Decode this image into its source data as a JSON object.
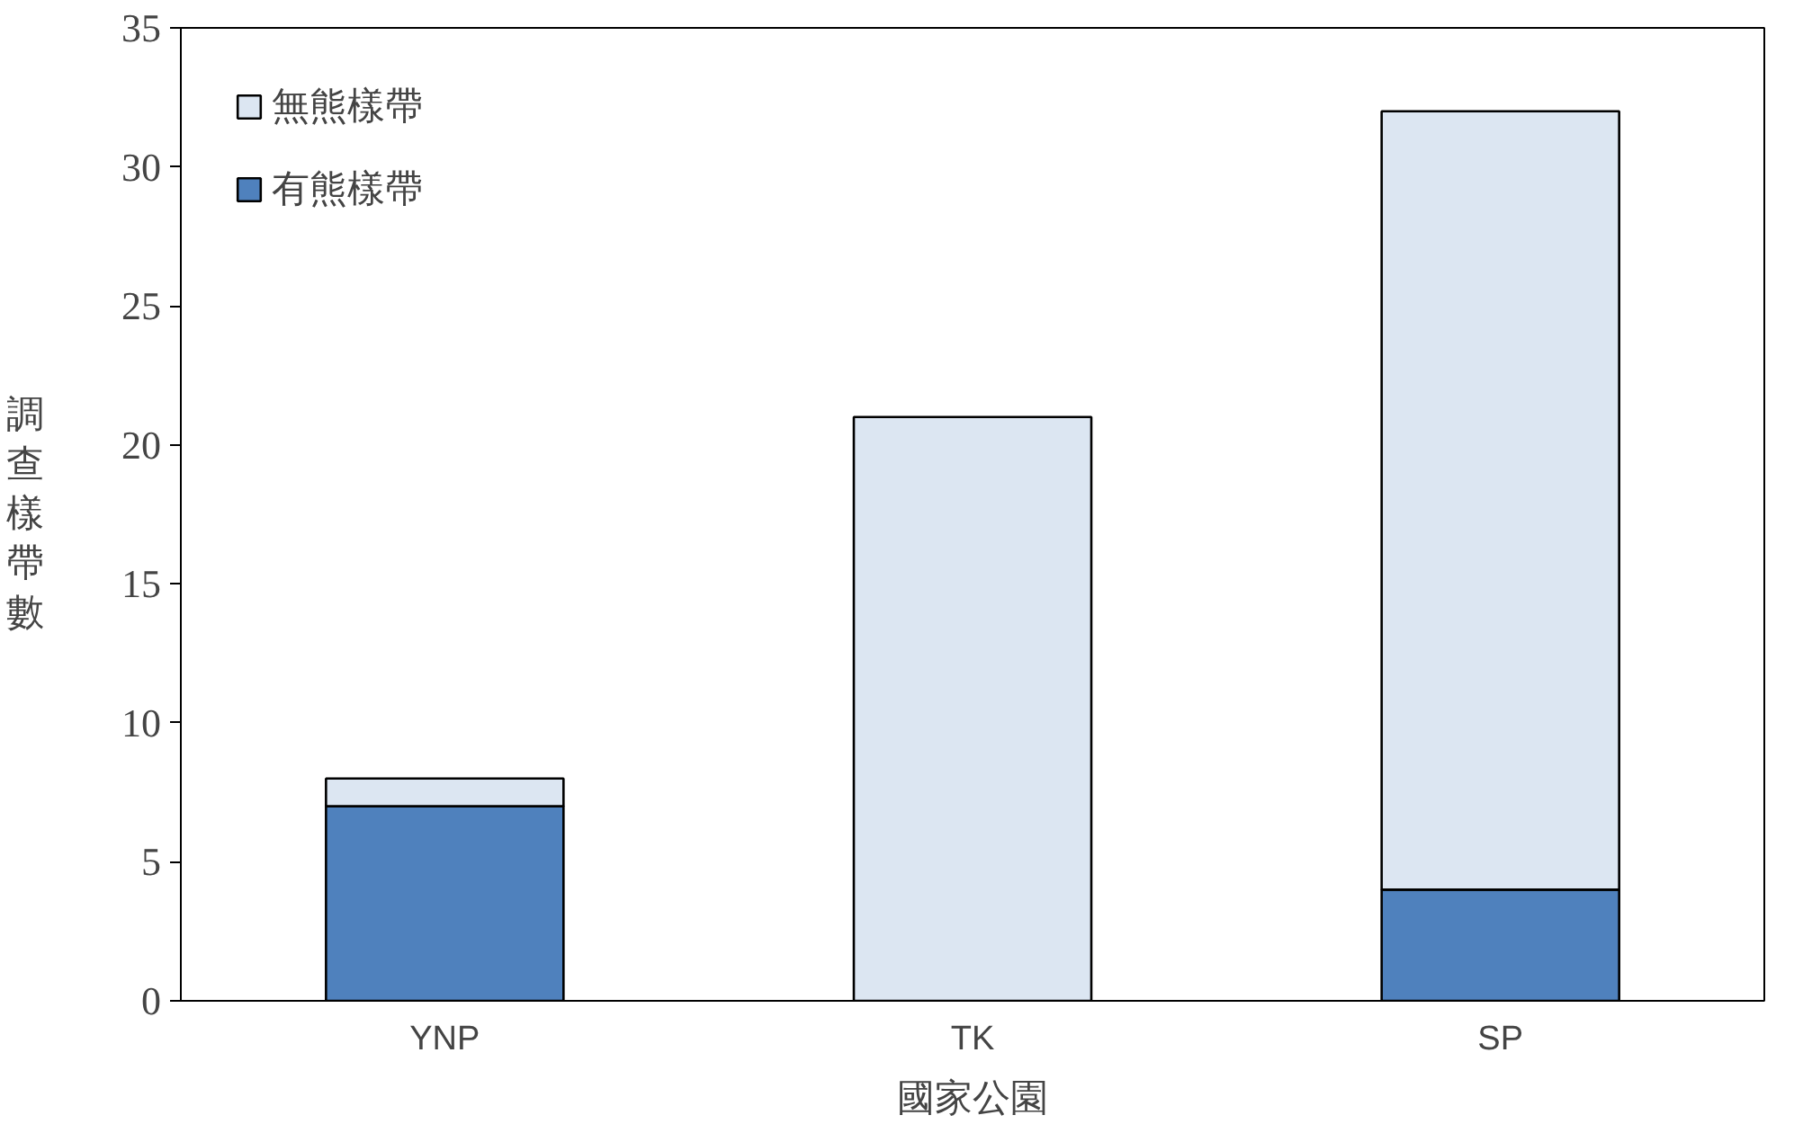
{
  "chart_data": {
    "type": "bar",
    "stacked": true,
    "xlabel": "國家公園",
    "ylabel": "調查樣帶數",
    "categories": [
      "YNP",
      "TK",
      "SP"
    ],
    "series": [
      {
        "name": "有熊樣帶",
        "color": "#4f81bd",
        "values": [
          7,
          0,
          4
        ]
      },
      {
        "name": "無熊樣帶",
        "color": "#dce6f2",
        "values": [
          1,
          21,
          28
        ]
      }
    ],
    "ylim": [
      0,
      35
    ],
    "yticks": [
      0,
      5,
      10,
      15,
      20,
      25,
      30,
      35
    ],
    "grid": false,
    "legend": "top left"
  }
}
